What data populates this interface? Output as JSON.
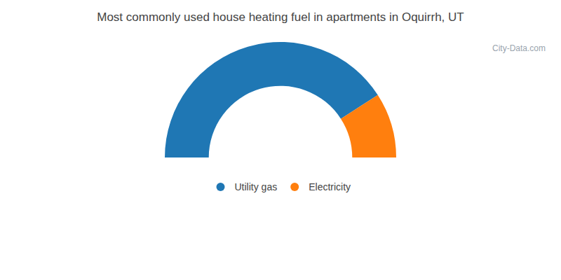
{
  "chart_data": {
    "type": "donut",
    "title": "Most commonly used house heating fuel in apartments in Oquirrh, UT",
    "categories": [
      "Utility gas",
      "Electricity"
    ],
    "values": [
      81.8,
      18.2
    ],
    "legend": "bottom",
    "data_labels": false,
    "annotations": [
      {
        "text": "City-Data.com"
      }
    ]
  }
}
